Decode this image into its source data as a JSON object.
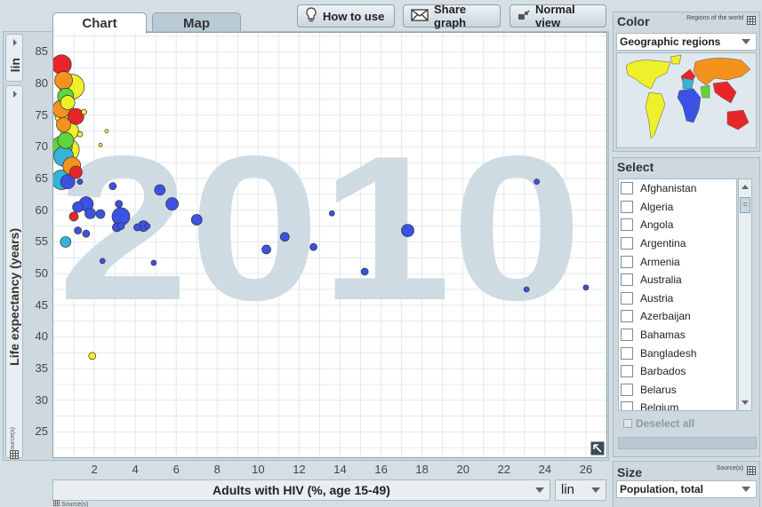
{
  "tabs": {
    "chart": "Chart",
    "map": "Map"
  },
  "toolbar": {
    "how_to_use": "How to use",
    "share_graph": "Share graph",
    "normal_view": "Normal view"
  },
  "y_scale_side": "lin",
  "x_scale": "lin",
  "source_label": "Source(s)",
  "year_watermark": "2010",
  "color_panel": {
    "title": "Color",
    "subtitle": "Regions of the world",
    "selected": "Geographic regions"
  },
  "select_panel": {
    "title": "Select",
    "deselect_all": "Deselect all",
    "countries": [
      "Afghanistan",
      "Algeria",
      "Angola",
      "Argentina",
      "Armenia",
      "Australia",
      "Austria",
      "Azerbaijan",
      "Bahamas",
      "Bangladesh",
      "Barbados",
      "Belarus",
      "Belgium"
    ]
  },
  "size_panel": {
    "title": "Size",
    "source": "Source(s)",
    "selected": "Population, total"
  },
  "region_colors": {
    "blue": "#3b52e4",
    "red": "#e8262a",
    "yellow": "#f0f02a",
    "green": "#5fd63a",
    "orange": "#f5921e",
    "cyan": "#36b4d8"
  },
  "chart_data": {
    "type": "scatter",
    "title": "",
    "xlabel": "Adults with HIV (%, age 15-49)",
    "ylabel": "Life expectancy (years)",
    "xlim": [
      0,
      27
    ],
    "ylim": [
      21,
      88
    ],
    "x_ticks": [
      2,
      4,
      6,
      8,
      10,
      12,
      14,
      16,
      18,
      20,
      22,
      24,
      26
    ],
    "y_ticks": [
      25,
      30,
      35,
      40,
      45,
      50,
      55,
      60,
      65,
      70,
      75,
      80,
      85
    ],
    "year": "2010",
    "grid": true,
    "points": [
      {
        "x": 0.4,
        "y": 83,
        "size": 11,
        "color": "red"
      },
      {
        "x": 0.5,
        "y": 80.5,
        "size": 10,
        "color": "orange"
      },
      {
        "x": 0.9,
        "y": 79.5,
        "size": 14,
        "color": "yellow"
      },
      {
        "x": 0.6,
        "y": 78,
        "size": 9,
        "color": "green"
      },
      {
        "x": 0.7,
        "y": 77,
        "size": 8,
        "color": "yellow"
      },
      {
        "x": 0.4,
        "y": 76,
        "size": 10,
        "color": "orange"
      },
      {
        "x": 0.6,
        "y": 75,
        "size": 12,
        "color": "yellow"
      },
      {
        "x": 1.1,
        "y": 74.8,
        "size": 9,
        "color": "red"
      },
      {
        "x": 0.5,
        "y": 73.5,
        "size": 8,
        "color": "orange"
      },
      {
        "x": 0.8,
        "y": 72.5,
        "size": 10,
        "color": "yellow"
      },
      {
        "x": 0.6,
        "y": 71,
        "size": 9,
        "color": "green"
      },
      {
        "x": 0.4,
        "y": 70,
        "size": 12,
        "color": "green"
      },
      {
        "x": 0.7,
        "y": 69.5,
        "size": 13,
        "color": "yellow"
      },
      {
        "x": 0.5,
        "y": 68.5,
        "size": 11,
        "color": "cyan"
      },
      {
        "x": 0.9,
        "y": 67,
        "size": 10,
        "color": "orange"
      },
      {
        "x": 1.1,
        "y": 66,
        "size": 7,
        "color": "red"
      },
      {
        "x": 0.4,
        "y": 64.8,
        "size": 11,
        "color": "cyan"
      },
      {
        "x": 0.7,
        "y": 64.5,
        "size": 8,
        "color": "blue"
      },
      {
        "x": 1.5,
        "y": 75.5,
        "size": 3,
        "color": "yellow"
      },
      {
        "x": 1.3,
        "y": 72,
        "size": 3,
        "color": "yellow"
      },
      {
        "x": 2.6,
        "y": 72.5,
        "size": 2,
        "color": "yellow"
      },
      {
        "x": 2.3,
        "y": 70.3,
        "size": 2,
        "color": "yellow"
      },
      {
        "x": 1.3,
        "y": 64.5,
        "size": 3,
        "color": "blue"
      },
      {
        "x": 1.6,
        "y": 61,
        "size": 8,
        "color": "blue"
      },
      {
        "x": 1.2,
        "y": 60.5,
        "size": 6,
        "color": "blue"
      },
      {
        "x": 1.0,
        "y": 59,
        "size": 5,
        "color": "red"
      },
      {
        "x": 1.8,
        "y": 59.5,
        "size": 6,
        "color": "blue"
      },
      {
        "x": 2.3,
        "y": 59.4,
        "size": 5,
        "color": "blue"
      },
      {
        "x": 1.2,
        "y": 56.8,
        "size": 4,
        "color": "blue"
      },
      {
        "x": 1.6,
        "y": 56.3,
        "size": 4,
        "color": "blue"
      },
      {
        "x": 0.6,
        "y": 55,
        "size": 6,
        "color": "cyan"
      },
      {
        "x": 2.9,
        "y": 63.8,
        "size": 4,
        "color": "blue"
      },
      {
        "x": 3.2,
        "y": 61,
        "size": 4,
        "color": "blue"
      },
      {
        "x": 3.3,
        "y": 59,
        "size": 10,
        "color": "blue"
      },
      {
        "x": 3.1,
        "y": 57.3,
        "size": 5,
        "color": "blue"
      },
      {
        "x": 4.1,
        "y": 57.3,
        "size": 4,
        "color": "blue"
      },
      {
        "x": 4.4,
        "y": 57.5,
        "size": 6,
        "color": "blue"
      },
      {
        "x": 4.6,
        "y": 57.5,
        "size": 3,
        "color": "blue"
      },
      {
        "x": 3.3,
        "y": 57.5,
        "size": 4,
        "color": "blue"
      },
      {
        "x": 5.2,
        "y": 63.2,
        "size": 6,
        "color": "blue"
      },
      {
        "x": 5.8,
        "y": 61,
        "size": 7,
        "color": "blue"
      },
      {
        "x": 7.0,
        "y": 58.5,
        "size": 6,
        "color": "blue"
      },
      {
        "x": 2.4,
        "y": 52,
        "size": 3,
        "color": "blue"
      },
      {
        "x": 4.9,
        "y": 51.7,
        "size": 3,
        "color": "blue"
      },
      {
        "x": 10.4,
        "y": 53.8,
        "size": 5,
        "color": "blue"
      },
      {
        "x": 11.3,
        "y": 55.8,
        "size": 5,
        "color": "blue"
      },
      {
        "x": 12.7,
        "y": 54.2,
        "size": 4,
        "color": "blue"
      },
      {
        "x": 13.6,
        "y": 59.5,
        "size": 3,
        "color": "blue"
      },
      {
        "x": 15.2,
        "y": 50.3,
        "size": 4,
        "color": "blue"
      },
      {
        "x": 17.3,
        "y": 56.8,
        "size": 7,
        "color": "blue"
      },
      {
        "x": 23.6,
        "y": 64.5,
        "size": 3,
        "color": "blue"
      },
      {
        "x": 23.1,
        "y": 47.5,
        "size": 3,
        "color": "blue"
      },
      {
        "x": 26.0,
        "y": 47.8,
        "size": 3,
        "color": "blue"
      },
      {
        "x": 1.9,
        "y": 37,
        "size": 4,
        "color": "yellow"
      }
    ]
  }
}
